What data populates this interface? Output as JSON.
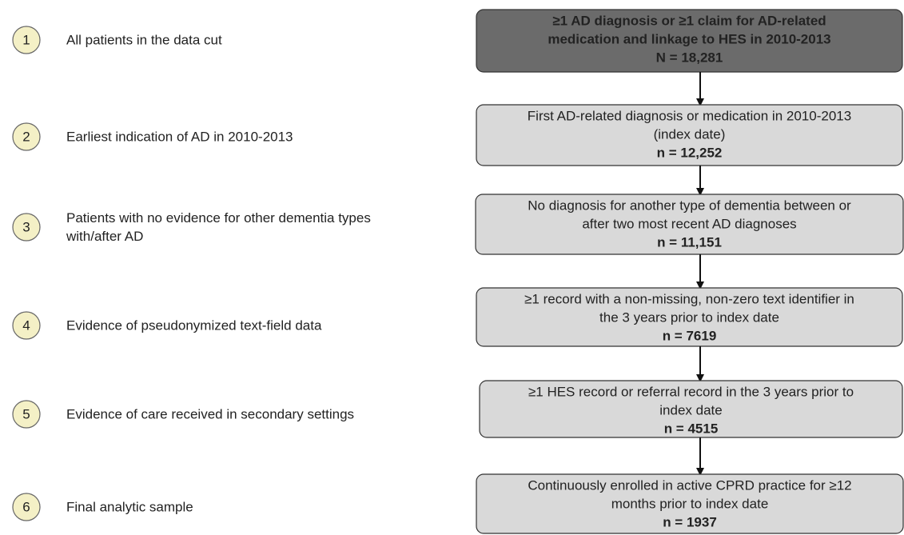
{
  "steps": [
    {
      "number": "1",
      "lines": [
        "All patients in the data cut"
      ]
    },
    {
      "number": "2",
      "lines": [
        "Earliest indication of AD in 2010-2013"
      ]
    },
    {
      "number": "3",
      "lines": [
        "Patients with no evidence for other dementia types",
        "with/after AD"
      ]
    },
    {
      "number": "4",
      "lines": [
        "Evidence of pseudonymized text-field data"
      ]
    },
    {
      "number": "5",
      "lines": [
        "Evidence of care received in secondary settings"
      ]
    },
    {
      "number": "6",
      "lines": [
        "Final analytic sample"
      ]
    }
  ],
  "boxes": [
    {
      "lines": [
        "≥1 AD diagnosis or ≥1 claim for AD-related",
        "medication and linkage to HES in 2010-2013"
      ],
      "count": "N = 18,281"
    },
    {
      "lines": [
        "First AD-related diagnosis or medication in 2010-2013",
        "(index date)"
      ],
      "count": "n = 12,252"
    },
    {
      "lines": [
        "No diagnosis for another type of dementia between or",
        "after two most recent AD diagnoses"
      ],
      "count": "n = 11,151"
    },
    {
      "lines": [
        "≥1 record with a non-missing, non-zero text identifier in",
        "the 3 years prior to index date"
      ],
      "count": "n = 7619"
    },
    {
      "lines": [
        "≥1 HES record or referral record in the 3 years prior to",
        "index date"
      ],
      "count": "n = 4515"
    },
    {
      "lines": [
        "Continuously enrolled in active CPRD practice for ≥12",
        "months prior to index date"
      ],
      "count": "n = 1937"
    }
  ]
}
